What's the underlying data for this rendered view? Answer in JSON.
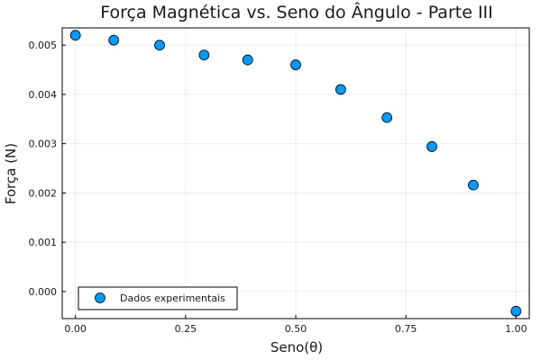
{
  "chart_data": {
    "type": "scatter",
    "title": "Força Magnética vs. Seno do Ângulo - Parte III",
    "xlabel": "Seno(θ)",
    "ylabel": "Força (N)",
    "xlim": [
      -0.03,
      1.03
    ],
    "ylim": [
      -0.00055,
      0.00535
    ],
    "x_ticks": [
      0.0,
      0.25,
      0.5,
      0.75,
      1.0
    ],
    "x_tick_labels": [
      "0.00",
      "0.25",
      "0.50",
      "0.75",
      "1.00"
    ],
    "y_ticks": [
      0.0,
      0.001,
      0.002,
      0.003,
      0.004,
      0.005
    ],
    "y_tick_labels": [
      "0.000",
      "0.001",
      "0.002",
      "0.003",
      "0.004",
      "0.005"
    ],
    "grid": true,
    "legend_position": "bottom-left",
    "series": [
      {
        "name": "Dados experimentais",
        "color": "#009AFA",
        "x": [
          0.0,
          0.087,
          0.191,
          0.292,
          0.391,
          0.5,
          0.602,
          0.707,
          0.809,
          0.903,
          1.0
        ],
        "y": [
          0.0052,
          0.0051,
          0.005,
          0.0048,
          0.0047,
          0.0046,
          0.0041,
          0.00353,
          0.00294,
          0.00216,
          -0.0004
        ]
      }
    ]
  }
}
